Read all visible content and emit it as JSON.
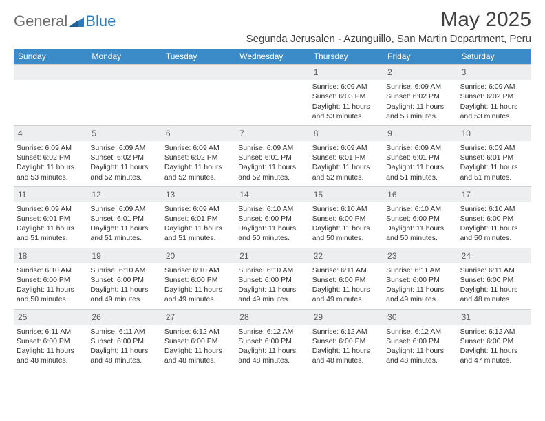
{
  "logo": {
    "general": "General",
    "blue": "Blue"
  },
  "title": "May 2025",
  "location": "Segunda Jerusalen - Azunguillo, San Martin Department, Peru",
  "colors": {
    "header_bg": "#3b8bc9",
    "header_text": "#ffffff",
    "daynum_bg": "#eceeef",
    "body_text": "#333333",
    "page_bg": "#ffffff"
  },
  "typography": {
    "month_title_fontsize": 30,
    "location_fontsize": 15,
    "weekday_fontsize": 12,
    "cell_fontsize": 10.5
  },
  "calendar": {
    "type": "table",
    "columns": [
      "Sunday",
      "Monday",
      "Tuesday",
      "Wednesday",
      "Thursday",
      "Friday",
      "Saturday"
    ],
    "weeks": [
      [
        null,
        null,
        null,
        null,
        {
          "num": "1",
          "sun": "Sunrise: 6:09 AM",
          "set": "Sunset: 6:03 PM",
          "day": "Daylight: 11 hours and 53 minutes."
        },
        {
          "num": "2",
          "sun": "Sunrise: 6:09 AM",
          "set": "Sunset: 6:02 PM",
          "day": "Daylight: 11 hours and 53 minutes."
        },
        {
          "num": "3",
          "sun": "Sunrise: 6:09 AM",
          "set": "Sunset: 6:02 PM",
          "day": "Daylight: 11 hours and 53 minutes."
        }
      ],
      [
        {
          "num": "4",
          "sun": "Sunrise: 6:09 AM",
          "set": "Sunset: 6:02 PM",
          "day": "Daylight: 11 hours and 53 minutes."
        },
        {
          "num": "5",
          "sun": "Sunrise: 6:09 AM",
          "set": "Sunset: 6:02 PM",
          "day": "Daylight: 11 hours and 52 minutes."
        },
        {
          "num": "6",
          "sun": "Sunrise: 6:09 AM",
          "set": "Sunset: 6:02 PM",
          "day": "Daylight: 11 hours and 52 minutes."
        },
        {
          "num": "7",
          "sun": "Sunrise: 6:09 AM",
          "set": "Sunset: 6:01 PM",
          "day": "Daylight: 11 hours and 52 minutes."
        },
        {
          "num": "8",
          "sun": "Sunrise: 6:09 AM",
          "set": "Sunset: 6:01 PM",
          "day": "Daylight: 11 hours and 52 minutes."
        },
        {
          "num": "9",
          "sun": "Sunrise: 6:09 AM",
          "set": "Sunset: 6:01 PM",
          "day": "Daylight: 11 hours and 51 minutes."
        },
        {
          "num": "10",
          "sun": "Sunrise: 6:09 AM",
          "set": "Sunset: 6:01 PM",
          "day": "Daylight: 11 hours and 51 minutes."
        }
      ],
      [
        {
          "num": "11",
          "sun": "Sunrise: 6:09 AM",
          "set": "Sunset: 6:01 PM",
          "day": "Daylight: 11 hours and 51 minutes."
        },
        {
          "num": "12",
          "sun": "Sunrise: 6:09 AM",
          "set": "Sunset: 6:01 PM",
          "day": "Daylight: 11 hours and 51 minutes."
        },
        {
          "num": "13",
          "sun": "Sunrise: 6:09 AM",
          "set": "Sunset: 6:01 PM",
          "day": "Daylight: 11 hours and 51 minutes."
        },
        {
          "num": "14",
          "sun": "Sunrise: 6:10 AM",
          "set": "Sunset: 6:00 PM",
          "day": "Daylight: 11 hours and 50 minutes."
        },
        {
          "num": "15",
          "sun": "Sunrise: 6:10 AM",
          "set": "Sunset: 6:00 PM",
          "day": "Daylight: 11 hours and 50 minutes."
        },
        {
          "num": "16",
          "sun": "Sunrise: 6:10 AM",
          "set": "Sunset: 6:00 PM",
          "day": "Daylight: 11 hours and 50 minutes."
        },
        {
          "num": "17",
          "sun": "Sunrise: 6:10 AM",
          "set": "Sunset: 6:00 PM",
          "day": "Daylight: 11 hours and 50 minutes."
        }
      ],
      [
        {
          "num": "18",
          "sun": "Sunrise: 6:10 AM",
          "set": "Sunset: 6:00 PM",
          "day": "Daylight: 11 hours and 50 minutes."
        },
        {
          "num": "19",
          "sun": "Sunrise: 6:10 AM",
          "set": "Sunset: 6:00 PM",
          "day": "Daylight: 11 hours and 49 minutes."
        },
        {
          "num": "20",
          "sun": "Sunrise: 6:10 AM",
          "set": "Sunset: 6:00 PM",
          "day": "Daylight: 11 hours and 49 minutes."
        },
        {
          "num": "21",
          "sun": "Sunrise: 6:10 AM",
          "set": "Sunset: 6:00 PM",
          "day": "Daylight: 11 hours and 49 minutes."
        },
        {
          "num": "22",
          "sun": "Sunrise: 6:11 AM",
          "set": "Sunset: 6:00 PM",
          "day": "Daylight: 11 hours and 49 minutes."
        },
        {
          "num": "23",
          "sun": "Sunrise: 6:11 AM",
          "set": "Sunset: 6:00 PM",
          "day": "Daylight: 11 hours and 49 minutes."
        },
        {
          "num": "24",
          "sun": "Sunrise: 6:11 AM",
          "set": "Sunset: 6:00 PM",
          "day": "Daylight: 11 hours and 48 minutes."
        }
      ],
      [
        {
          "num": "25",
          "sun": "Sunrise: 6:11 AM",
          "set": "Sunset: 6:00 PM",
          "day": "Daylight: 11 hours and 48 minutes."
        },
        {
          "num": "26",
          "sun": "Sunrise: 6:11 AM",
          "set": "Sunset: 6:00 PM",
          "day": "Daylight: 11 hours and 48 minutes."
        },
        {
          "num": "27",
          "sun": "Sunrise: 6:12 AM",
          "set": "Sunset: 6:00 PM",
          "day": "Daylight: 11 hours and 48 minutes."
        },
        {
          "num": "28",
          "sun": "Sunrise: 6:12 AM",
          "set": "Sunset: 6:00 PM",
          "day": "Daylight: 11 hours and 48 minutes."
        },
        {
          "num": "29",
          "sun": "Sunrise: 6:12 AM",
          "set": "Sunset: 6:00 PM",
          "day": "Daylight: 11 hours and 48 minutes."
        },
        {
          "num": "30",
          "sun": "Sunrise: 6:12 AM",
          "set": "Sunset: 6:00 PM",
          "day": "Daylight: 11 hours and 48 minutes."
        },
        {
          "num": "31",
          "sun": "Sunrise: 6:12 AM",
          "set": "Sunset: 6:00 PM",
          "day": "Daylight: 11 hours and 47 minutes."
        }
      ]
    ]
  }
}
